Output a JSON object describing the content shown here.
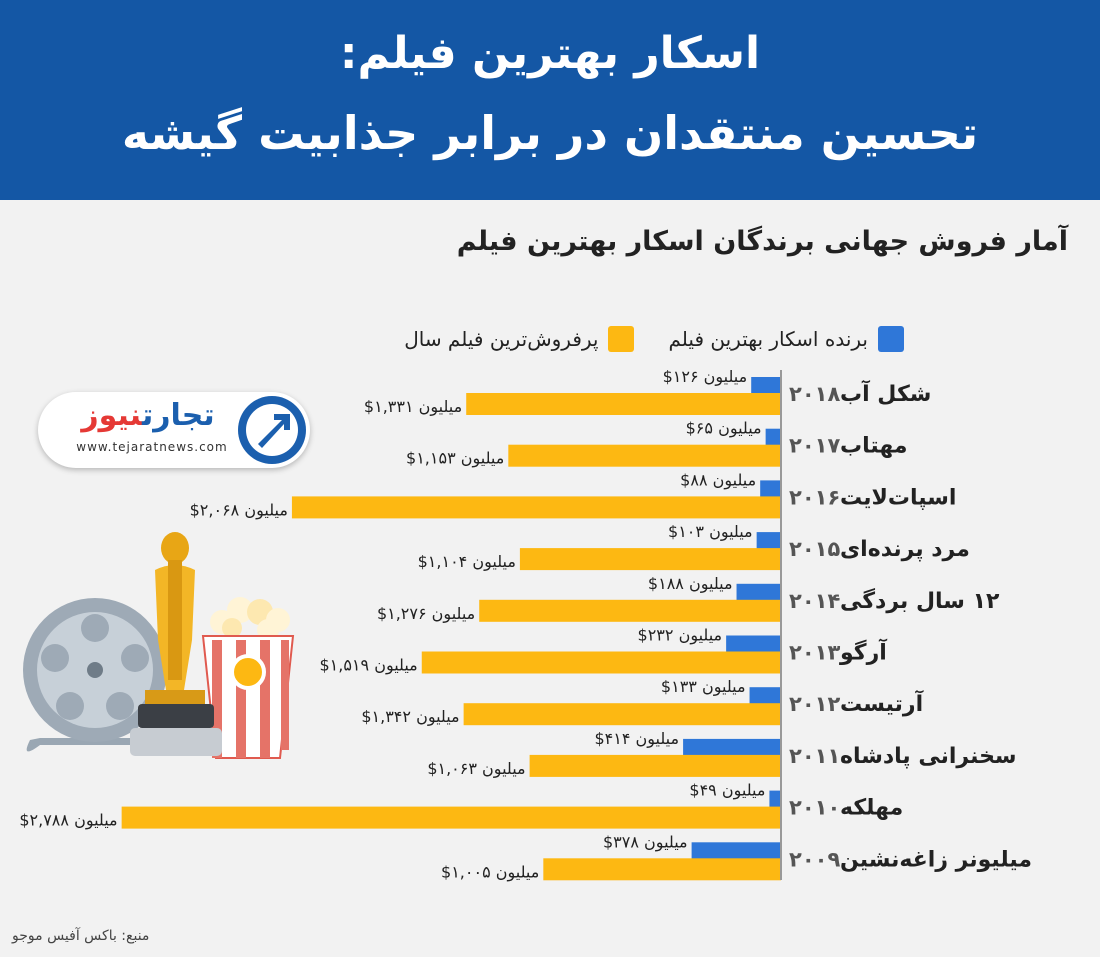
{
  "banner": {
    "title_line1": "اسکار بهترین فیلم:",
    "title_line2": "تحسین منتقدان در برابر جذابیت گیشه"
  },
  "subtitle": "آمار فروش جهانی برندگان اسکار بهترین فیلم",
  "logo": {
    "brand_part1": "تجارت",
    "brand_part2": "نیوز",
    "url": "www.tejaratnews.com",
    "icon": "tejaratnews-arrow-logo-icon"
  },
  "source": "منبع: باکس آفیس موجو",
  "colors": {
    "banner": "#1457a5",
    "winner": "#2f77d8",
    "topgrossing": "#fdb812"
  },
  "illustration_icons": [
    "film-reel-icon",
    "oscar-statuette-icon",
    "popcorn-box-icon"
  ],
  "chart_data": {
    "type": "bar",
    "orientation": "horizontal",
    "legend": [
      {
        "name": "برنده اسکار بهترین فیلم",
        "color": "#2f77d8"
      },
      {
        "name": "پرفروش‌ترین فیلم سال",
        "color": "#fdb812"
      }
    ],
    "unit_label": "میلیون",
    "categories": [
      {
        "film": "شکل آب",
        "year": "۲۰۱۸"
      },
      {
        "film": "مهتاب",
        "year": "۲۰۱۷"
      },
      {
        "film": "اسپات‌لایت",
        "year": "۲۰۱۶"
      },
      {
        "film": "مرد پرنده‌ای",
        "year": "۲۰۱۵"
      },
      {
        "film": "۱۲ سال بردگی",
        "year": "۲۰۱۴"
      },
      {
        "film": "آرگو",
        "year": "۲۰۱۳"
      },
      {
        "film": "آرتیست",
        "year": "۲۰۱۲"
      },
      {
        "film": "سخنرانی پادشاه",
        "year": "۲۰۱۱"
      },
      {
        "film": "مهلکه",
        "year": "۲۰۱۰"
      },
      {
        "film": "میلیونر زاغه‌نشین",
        "year": "۲۰۰۹"
      }
    ],
    "series": [
      {
        "name": "برنده اسکار بهترین فیلم",
        "values": [
          126,
          65,
          88,
          103,
          188,
          232,
          133,
          414,
          49,
          378
        ],
        "labels": [
          "$۱۲۶",
          "$۶۵",
          "$۸۸",
          "$۱۰۳",
          "$۱۸۸",
          "$۲۳۲",
          "$۱۳۳",
          "$۴۱۴",
          "$۴۹",
          "$۳۷۸"
        ]
      },
      {
        "name": "پرفروش‌ترین فیلم سال",
        "values": [
          1331,
          1153,
          2068,
          1104,
          1276,
          1519,
          1342,
          1063,
          2788,
          1005
        ],
        "labels": [
          "$۱,۳۳۱",
          "$۱,۱۵۳",
          "$۲,۰۶۸",
          "$۱,۱۰۴",
          "$۱,۲۷۶",
          "$۱,۵۱۹",
          "$۱,۳۴۲",
          "$۱,۰۶۳",
          "$۲,۷۸۸",
          "$۱,۰۰۵"
        ]
      }
    ]
  }
}
